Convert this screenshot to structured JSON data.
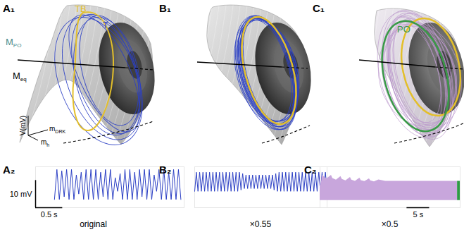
{
  "panels": [
    {
      "label": "A₁",
      "annotations": [
        {
          "text": "TB",
          "color": "#e3bf2a"
        },
        {
          "text": "T",
          "color": "#2b3fc4"
        },
        {
          "text": "M",
          "sub": "PO",
          "color": "#4f8c8c"
        },
        {
          "text": "M",
          "sub": "eq",
          "color": "#000000"
        }
      ],
      "axis_labels": [
        {
          "text": "V(mV)"
        },
        {
          "text": "m",
          "sub": "DRK"
        },
        {
          "text": "m",
          "sub": "h"
        }
      ]
    },
    {
      "label": "B₁"
    },
    {
      "label": "C₁",
      "annotations": [
        {
          "text": "PO",
          "color": "#3a9a48"
        }
      ]
    }
  ],
  "chart_data": [
    {
      "title": "A₂",
      "type": "line",
      "caption": "original",
      "color": "#2b3fc4",
      "x": [
        0,
        0.045,
        0.09,
        0.135,
        0.18,
        0.225,
        0.27,
        0.315,
        0.36,
        0.405,
        0.45,
        0.495,
        0.54,
        0.585,
        0.63,
        0.675,
        0.72,
        0.765,
        0.81,
        0.855,
        0.9,
        0.945,
        0.99,
        1.035,
        1.08,
        1.125,
        1.17,
        1.215,
        1.26,
        1.305,
        1.35,
        1.395,
        1.44,
        1.485,
        1.53,
        1.575,
        1.62,
        1.665,
        1.71,
        1.755,
        1.8,
        1.845,
        1.89,
        1.935,
        1.98,
        2.025,
        2.07,
        2.115,
        2.16,
        2.205,
        2.25,
        2.295,
        2.34
      ],
      "values": [
        1,
        12,
        1,
        11.5,
        2,
        12,
        1,
        12,
        1,
        10,
        3,
        11,
        1,
        12,
        1,
        12,
        1,
        12,
        1,
        11,
        2,
        12,
        1,
        12,
        1,
        9,
        4,
        10.5,
        1,
        12,
        1,
        12,
        1,
        11,
        1,
        12,
        2,
        12,
        1,
        12,
        1,
        10,
        4,
        12,
        1,
        12,
        1,
        11,
        1,
        12,
        1,
        12,
        1
      ],
      "xlim": [
        -0.35,
        2.4
      ],
      "ylim": [
        -2,
        13
      ],
      "tick_labels": false,
      "scale_bars": [
        {
          "axis": "y",
          "value": 10,
          "label": "10 mV"
        },
        {
          "axis": "x",
          "value": 0.5,
          "label": "0.5 s"
        }
      ]
    },
    {
      "title": "B₂",
      "type": "line",
      "caption": "×0.55",
      "color": "#2b3fc4",
      "x": [
        0,
        0.03,
        0.06,
        0.09,
        0.12,
        0.15,
        0.18,
        0.21,
        0.24,
        0.27,
        0.3,
        0.33,
        0.36,
        0.39,
        0.42,
        0.45,
        0.48,
        0.51,
        0.54,
        0.57,
        0.6,
        0.63,
        0.66,
        0.69,
        0.72,
        0.75,
        0.78,
        0.81,
        0.84,
        0.87,
        0.9,
        0.93,
        0.96,
        0.99,
        1.02,
        1.05,
        1.08,
        1.11,
        1.14,
        1.17,
        1.2,
        1.23,
        1.26,
        1.29,
        1.32,
        1.35,
        1.38,
        1.41,
        1.44,
        1.47,
        1.5,
        1.53,
        1.56,
        1.59,
        1.62,
        1.65,
        1.68,
        1.71,
        1.74,
        1.77,
        1.8,
        1.83,
        1.86,
        1.89,
        1.92,
        1.95,
        1.98,
        2.01,
        2.04,
        2.07,
        2.1,
        2.13,
        2.16,
        2.19,
        2.22,
        2.25,
        2.28,
        2.31,
        2.34,
        2.37,
        2.4
      ],
      "values": [
        4,
        11,
        4,
        11,
        4,
        11,
        4,
        11,
        4,
        11,
        4,
        11,
        4,
        11,
        4,
        11,
        4,
        11,
        4,
        11,
        4,
        11,
        4,
        11,
        4,
        11,
        4,
        11,
        4.5,
        10.5,
        5,
        10,
        5,
        10,
        5,
        10,
        5,
        10,
        5,
        10,
        5,
        10,
        5,
        10,
        5,
        10,
        5,
        10,
        4.5,
        10.5,
        4,
        11,
        4,
        11,
        4,
        11,
        4,
        11,
        4,
        11,
        4,
        11,
        4,
        11,
        4,
        11,
        4,
        11,
        4,
        11,
        4,
        11,
        4,
        11,
        4,
        11,
        4,
        11,
        4,
        11,
        4
      ],
      "xlim": [
        0,
        2.4
      ],
      "ylim": [
        -2,
        13
      ],
      "tick_labels": false
    },
    {
      "title": "C₂",
      "type": "area",
      "caption": "×0.5",
      "series": [
        {
          "color": "#c8a6dc",
          "x": [
            0,
            0.2,
            0.5,
            1.5,
            2.5,
            2.8,
            3.6,
            4.6,
            4.9,
            5.7,
            6.7,
            7.0,
            7.8,
            8.8,
            9.1,
            9.9,
            10.9,
            11.2,
            12.0,
            13.0,
            14.5,
            30.4
          ],
          "values": [
            13,
            6,
            10.5,
            9,
            10.5,
            9.2,
            8.5,
            10,
            8.8,
            8.2,
            9.6,
            8.5,
            8,
            9.3,
            8.3,
            7.9,
            9,
            8.2,
            7.8,
            8.6,
            8,
            8
          ],
          "lower": [
            0,
            0,
            0,
            0,
            0,
            0,
            0,
            0,
            0,
            0,
            0,
            0,
            0,
            0,
            0,
            0,
            0,
            0,
            0,
            0,
            0,
            0
          ]
        },
        {
          "color": "#2e9a45",
          "x": [
            30.4,
            31
          ],
          "values": [
            8,
            8
          ],
          "lower": [
            0,
            0
          ]
        }
      ],
      "xlim": [
        0,
        31
      ],
      "ylim": [
        -3,
        14
      ],
      "tick_labels": false,
      "scale_bars": [
        {
          "axis": "x",
          "value": 5,
          "label": "5 s"
        }
      ]
    }
  ]
}
